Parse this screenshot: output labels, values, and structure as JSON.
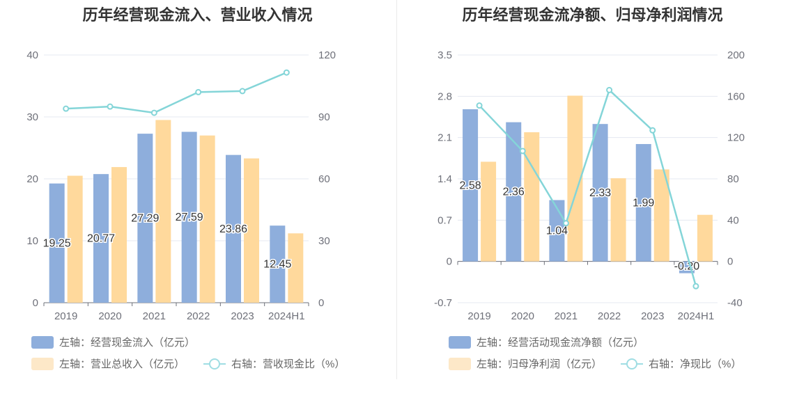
{
  "colors": {
    "bar1": "#8eaedc",
    "bar2": "#ffd99c",
    "line": "#84d5d8",
    "legend_bar2": "#fde8c8",
    "legend_line": "#9fdde3"
  },
  "left": {
    "legend": {
      "bar1": "左轴：经营现金流入（亿元）",
      "bar2": "左轴：营业总收入（亿元）",
      "line": "右轴：营收现金比（%）"
    }
  },
  "right": {
    "legend": {
      "bar1": "左轴：经营活动现金流净额（亿元）",
      "bar2": "左轴：归母净利润（亿元）",
      "line": "右轴：净现比（%）"
    }
  },
  "chart_data": [
    {
      "type": "bar",
      "title": "历年经营现金流入、营业收入情况",
      "categories": [
        "2019",
        "2020",
        "2021",
        "2022",
        "2023",
        "2024H1"
      ],
      "series": [
        {
          "name": "左轴：经营现金流入（亿元）",
          "axis": "left",
          "type": "bar",
          "values": [
            19.25,
            20.77,
            27.29,
            27.59,
            23.86,
            12.45
          ],
          "labels": [
            "19.25",
            "20.77",
            "27.29",
            "27.59",
            "23.86",
            "12.45"
          ]
        },
        {
          "name": "左轴：营业总收入（亿元）",
          "axis": "left",
          "type": "bar",
          "values": [
            20.5,
            21.9,
            29.5,
            27.0,
            23.3,
            11.2
          ]
        },
        {
          "name": "右轴：营收现金比（%）",
          "axis": "right",
          "type": "line",
          "values": [
            94,
            95,
            92,
            102,
            102.5,
            111.5
          ]
        }
      ],
      "y_left": {
        "min": 0,
        "max": 40,
        "ticks": [
          "0",
          "10",
          "20",
          "30",
          "40"
        ]
      },
      "y_right": {
        "min": 0,
        "max": 120,
        "ticks": [
          "0",
          "30",
          "60",
          "90",
          "120"
        ]
      },
      "grid": true,
      "legend_position": "bottom"
    },
    {
      "type": "bar",
      "title": "历年经营现金流净额、归母净利润情况",
      "categories": [
        "2019",
        "2020",
        "2021",
        "2022",
        "2023",
        "2024H1"
      ],
      "series": [
        {
          "name": "左轴：经营活动现金流净额（亿元）",
          "axis": "left",
          "type": "bar",
          "values": [
            2.58,
            2.36,
            1.04,
            2.33,
            1.99,
            -0.2
          ],
          "labels": [
            "2.58",
            "2.36",
            "1.04",
            "2.33",
            "1.99",
            "-0.20"
          ]
        },
        {
          "name": "左轴：归母净利润（亿元）",
          "axis": "left",
          "type": "bar",
          "values": [
            1.69,
            2.19,
            2.81,
            1.41,
            1.56,
            0.79
          ]
        },
        {
          "name": "右轴：净现比（%）",
          "axis": "right",
          "type": "line",
          "values": [
            151,
            107,
            37,
            166,
            127,
            -24
          ]
        }
      ],
      "y_left": {
        "min": -0.7,
        "max": 3.5,
        "ticks": [
          "-0.7",
          "0",
          "0.7",
          "1.4",
          "2.1",
          "2.8",
          "3.5"
        ]
      },
      "y_right": {
        "min": -40,
        "max": 200,
        "ticks": [
          "-40",
          "0",
          "40",
          "80",
          "120",
          "160",
          "200"
        ]
      },
      "grid": true,
      "legend_position": "bottom"
    }
  ]
}
